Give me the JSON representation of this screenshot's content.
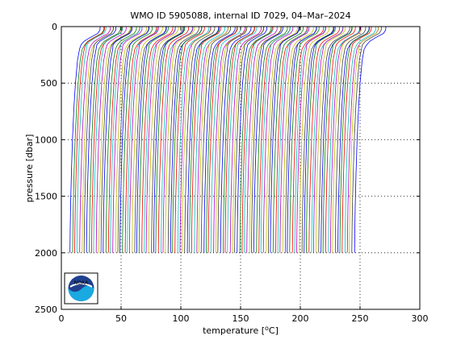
{
  "chart_data": {
    "type": "line",
    "title": "WMO ID 5905088, internal ID 7029, 04–Mar–2024",
    "xlabel_prefix": "temperature [",
    "xlabel_sup": "o",
    "xlabel_suffix": "C]",
    "ylabel": "pressure [dbar]",
    "xlim": [
      0,
      300
    ],
    "ylim": [
      0,
      2500
    ],
    "y_reversed": true,
    "xticks": [
      0,
      50,
      100,
      150,
      200,
      250,
      300
    ],
    "yticks": [
      0,
      500,
      1000,
      1500,
      2000,
      2500
    ],
    "grid": "dotted",
    "series_offset_note": "profiles drawn with successive horizontal offset",
    "profile_count": 120,
    "offset_start": 5,
    "offset_step": 2,
    "profile_template": {
      "pressure": [
        0,
        30,
        60,
        100,
        130,
        160,
        200,
        300,
        500,
        700,
        1000,
        1300,
        1600,
        1800,
        2000
      ],
      "temperature": [
        27.5,
        27.3,
        25.5,
        18.5,
        14.0,
        11.5,
        10.2,
        8.5,
        6.8,
        5.6,
        4.3,
        3.4,
        2.7,
        2.4,
        2.2
      ]
    },
    "colors": [
      "#0000ff",
      "#008000",
      "#ff0000",
      "#00bfbf",
      "#bf00bf",
      "#bfbf00",
      "#404040"
    ]
  },
  "logo": {
    "text": "NOAA",
    "colors": {
      "dark": "#1f3f8f",
      "light": "#1ba9e1",
      "white": "#ffffff"
    }
  }
}
